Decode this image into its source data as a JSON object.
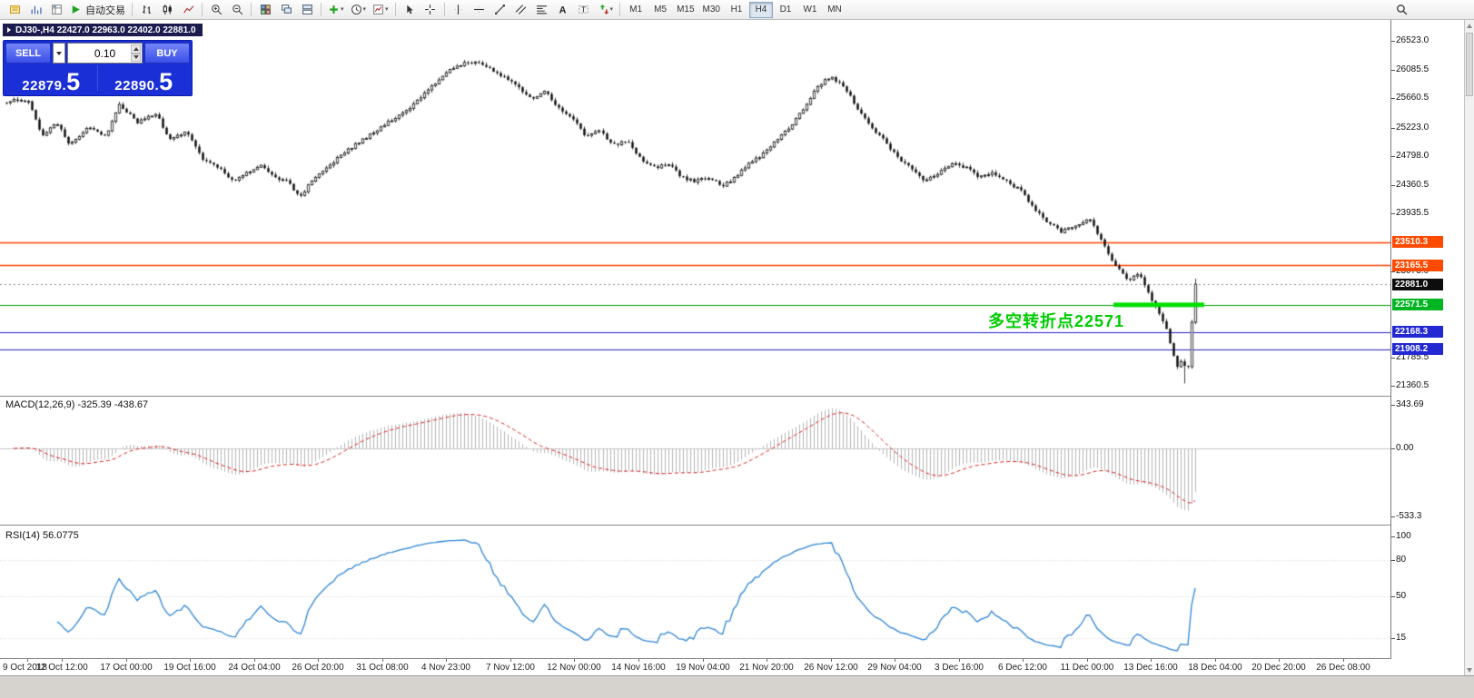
{
  "toolbar": {
    "auto_trading_label": "自动交易",
    "items": [
      "new-order",
      "charts",
      "market-watch",
      "auto-trading",
      "sep",
      "bar-chart",
      "candlestick",
      "line-chart",
      "sep",
      "zoom-in",
      "zoom-out",
      "sep",
      "tile-windows",
      "cascade-windows",
      "tile-horizontal",
      "sep",
      "indicators",
      "periods",
      "templates",
      "sep",
      "cursor",
      "crosshair",
      "sep",
      "vertical-line",
      "horizontal-line",
      "trendline",
      "equidistant-channel",
      "fibonacci",
      "text",
      "text-label",
      "arrows",
      "sep"
    ],
    "carets": [
      "indicators",
      "periods",
      "templates",
      "arrows"
    ],
    "timeframes": [
      "M1",
      "M5",
      "M15",
      "M30",
      "H1",
      "H4",
      "D1",
      "W1",
      "MN"
    ],
    "active_timeframe": "H4"
  },
  "chart": {
    "title": "DJ30-,H4 22427.0 22963.0 22402.0 22881.0",
    "symbol": "DJ30-",
    "timeframe": "H4"
  },
  "order_panel": {
    "sell_label": "SELL",
    "buy_label": "BUY",
    "volume_value": "0.10",
    "sell_price": "22879.5",
    "sell_price_main": "22879.",
    "sell_price_big": "5",
    "buy_price": "22890.5",
    "buy_price_main": "22890.",
    "buy_price_big": "5"
  },
  "annotation": {
    "text": "多空转折点22571",
    "color": "#00cc00"
  },
  "price_axis": {
    "ticks": [
      {
        "text": "26523.0",
        "price": 26523.0
      },
      {
        "text": "26085.5",
        "price": 26085.5
      },
      {
        "text": "25660.5",
        "price": 25660.5
      },
      {
        "text": "25223.0",
        "price": 25223.0
      },
      {
        "text": "24798.0",
        "price": 24798.0
      },
      {
        "text": "24360.5",
        "price": 24360.5
      },
      {
        "text": "23935.5",
        "price": 23935.5
      },
      {
        "text": "23073.0",
        "price": 23073.0
      },
      {
        "text": "21785.5",
        "price": 21785.5
      },
      {
        "text": "21360.5",
        "price": 21360.5
      }
    ],
    "badges": [
      {
        "text": "23510.3",
        "price": 23510.3,
        "color": "#ff4a00"
      },
      {
        "text": "23165.5",
        "price": 23165.5,
        "color": "#ff4a00"
      },
      {
        "text": "22881.0",
        "price": 22881.0,
        "color": "#0d0d0d"
      },
      {
        "text": "22571.5",
        "price": 22571.5,
        "color": "#00b422"
      },
      {
        "text": "22168.3",
        "price": 22168.3,
        "color": "#2228d2"
      },
      {
        "text": "21908.2",
        "price": 21908.2,
        "color": "#2228d2"
      }
    ]
  },
  "hlines": [
    {
      "price": 23510.3,
      "color": "#ff4500",
      "width": 1.4
    },
    {
      "price": 23165.5,
      "color": "#ff4500",
      "width": 1.4
    },
    {
      "price": 22571.5,
      "color": "#00a000",
      "width": 1.2
    },
    {
      "price": 22168.3,
      "color": "#2222cc",
      "width": 1.2
    },
    {
      "price": 21908.2,
      "color": "#2222cc",
      "width": 1.2
    }
  ],
  "current_price_line": {
    "price": 22881.0,
    "color": "#8c8c8c"
  },
  "green_segment": {
    "price": 22571.5,
    "t_start": 0.93,
    "t_end": 1.006,
    "thickness": 5,
    "color": "#00e000"
  },
  "indicators": {
    "macd": {
      "label": "MACD(12,26,9) -325.39 -438.67",
      "fast": 12,
      "slow": 26,
      "signal": 9,
      "main_value": "-325.39",
      "signal_value": "-438.67",
      "axis_labels": [
        {
          "text": "343.69",
          "value": 343.69
        },
        {
          "text": "0.00",
          "value": 0
        },
        {
          "text": "-533.3",
          "value": -533.3
        }
      ],
      "histogram_color": "#b6b6b6",
      "signal_color": "#e02020",
      "zero_line_color": "#c8c8c8"
    },
    "rsi": {
      "label": "RSI(14) 56.0775",
      "period": 14,
      "value": "56.0775",
      "axis_labels": [
        {
          "text": "100",
          "value": 100
        },
        {
          "text": "80",
          "value": 80
        },
        {
          "text": "50",
          "value": 50
        },
        {
          "text": "15",
          "value": 15
        }
      ],
      "levels": [
        80,
        50,
        15
      ],
      "line_color": "#2f86d6"
    }
  },
  "time_axis": {
    "labels": [
      "9 Oct 2018",
      "12 Oct 12:00",
      "17 Oct 00:00",
      "19 Oct 16:00",
      "24 Oct 04:00",
      "26 Oct 20:00",
      "31 Oct 08:00",
      "4 Nov 23:00",
      "7 Nov 12:00",
      "12 Nov 00:00",
      "14 Nov 16:00",
      "19 Nov 04:00",
      "21 Nov 20:00",
      "26 Nov 12:00",
      "29 Nov 04:00",
      "3 Dec 16:00",
      "6 Dec 12:00",
      "11 Dec 00:00",
      "13 Dec 16:00",
      "18 Dec 04:00",
      "20 Dec 20:00",
      "26 Dec 08:00"
    ]
  },
  "chart_data": {
    "type": "candlestick",
    "symbol": "DJ30-",
    "timeframe": "H4",
    "title_ohlc": {
      "open": 22427.0,
      "high": 22963.0,
      "low": 22402.0,
      "close": 22881.0
    },
    "price_axis_top": 26523.0,
    "price_axis_bottom": 21360.5,
    "candle_count": 328,
    "last_candle": {
      "close": 22881.0,
      "high": 22963.0
    },
    "close_keyframes": [
      [
        0.0,
        25600
      ],
      [
        0.008,
        25640
      ],
      [
        0.019,
        25620
      ],
      [
        0.03,
        25100
      ],
      [
        0.042,
        25300
      ],
      [
        0.053,
        24960
      ],
      [
        0.069,
        25230
      ],
      [
        0.084,
        25100
      ],
      [
        0.095,
        25580
      ],
      [
        0.11,
        25300
      ],
      [
        0.126,
        25440
      ],
      [
        0.137,
        25030
      ],
      [
        0.152,
        25170
      ],
      [
        0.164,
        24760
      ],
      [
        0.179,
        24620
      ],
      [
        0.19,
        24420
      ],
      [
        0.202,
        24550
      ],
      [
        0.213,
        24660
      ],
      [
        0.225,
        24480
      ],
      [
        0.236,
        24420
      ],
      [
        0.247,
        24180
      ],
      [
        0.259,
        24480
      ],
      [
        0.27,
        24620
      ],
      [
        0.282,
        24825
      ],
      [
        0.293,
        24960
      ],
      [
        0.305,
        25100
      ],
      [
        0.316,
        25240
      ],
      [
        0.327,
        25370
      ],
      [
        0.339,
        25500
      ],
      [
        0.35,
        25710
      ],
      [
        0.362,
        25910
      ],
      [
        0.373,
        26110
      ],
      [
        0.385,
        26180
      ],
      [
        0.396,
        26210
      ],
      [
        0.407,
        26110
      ],
      [
        0.419,
        25980
      ],
      [
        0.43,
        25840
      ],
      [
        0.442,
        25640
      ],
      [
        0.453,
        25770
      ],
      [
        0.465,
        25500
      ],
      [
        0.476,
        25370
      ],
      [
        0.487,
        25100
      ],
      [
        0.499,
        25170
      ],
      [
        0.51,
        24960
      ],
      [
        0.522,
        25030
      ],
      [
        0.533,
        24760
      ],
      [
        0.545,
        24620
      ],
      [
        0.556,
        24690
      ],
      [
        0.567,
        24480
      ],
      [
        0.579,
        24420
      ],
      [
        0.59,
        24480
      ],
      [
        0.602,
        24350
      ],
      [
        0.613,
        24480
      ],
      [
        0.624,
        24690
      ],
      [
        0.636,
        24825
      ],
      [
        0.647,
        25030
      ],
      [
        0.659,
        25240
      ],
      [
        0.67,
        25500
      ],
      [
        0.681,
        25840
      ],
      [
        0.693,
        25980
      ],
      [
        0.704,
        25840
      ],
      [
        0.716,
        25500
      ],
      [
        0.727,
        25240
      ],
      [
        0.738,
        25030
      ],
      [
        0.75,
        24760
      ],
      [
        0.761,
        24620
      ],
      [
        0.773,
        24420
      ],
      [
        0.784,
        24550
      ],
      [
        0.796,
        24690
      ],
      [
        0.807,
        24620
      ],
      [
        0.818,
        24480
      ],
      [
        0.83,
        24550
      ],
      [
        0.841,
        24420
      ],
      [
        0.853,
        24280
      ],
      [
        0.864,
        24010
      ],
      [
        0.876,
        23805
      ],
      [
        0.887,
        23670
      ],
      [
        0.898,
        23740
      ],
      [
        0.91,
        23875
      ],
      [
        0.921,
        23535
      ],
      [
        0.929,
        23260
      ],
      [
        0.937,
        23060
      ],
      [
        0.944,
        22920
      ],
      [
        0.952,
        23060
      ],
      [
        0.957,
        22855
      ],
      [
        0.963,
        22650
      ],
      [
        0.969,
        22445
      ],
      [
        0.975,
        22245
      ],
      [
        0.98,
        21905
      ],
      [
        0.985,
        21630
      ],
      [
        0.989,
        21770
      ],
      [
        0.992,
        21565
      ],
      [
        0.995,
        21700
      ],
      [
        0.998,
        22650
      ],
      [
        1.0,
        22881
      ]
    ]
  }
}
